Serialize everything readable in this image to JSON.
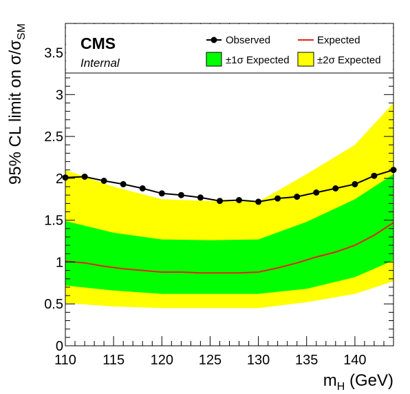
{
  "chart_data": {
    "type": "line",
    "experiment_label": "CMS",
    "status_label": "Internal",
    "xlabel": "m",
    "xlabel_sub": "H",
    "xlabel_units": " (GeV)",
    "ylabel_main": "95% CL limit on σ/σ",
    "ylabel_sub": "SM",
    "xlim": [
      110,
      144
    ],
    "ylim": [
      0,
      3.85
    ],
    "x_ticks": [
      110,
      115,
      120,
      125,
      130,
      135,
      140
    ],
    "x_tick_labels": [
      "110",
      "115",
      "120",
      "125",
      "130",
      "135",
      "140"
    ],
    "y_ticks": [
      0,
      0.5,
      1,
      1.5,
      2,
      2.5,
      3,
      3.5
    ],
    "y_tick_labels": [
      "0",
      "0.5",
      "1",
      "1.5",
      "2",
      "2.5",
      "3",
      "3.5"
    ],
    "legend": {
      "observed": "Observed",
      "expected": "Expected",
      "band1": "±1σ Expected",
      "band2": "±2σ Expected"
    },
    "colors": {
      "observed": "#000000",
      "expected": "#e8201a",
      "band1": "#00ff00",
      "band2": "#ffff00"
    },
    "grid": false,
    "observed": {
      "x": [
        110,
        112,
        114,
        116,
        118,
        120,
        122,
        124,
        126,
        128,
        130,
        132,
        134,
        136,
        138,
        140,
        142,
        144
      ],
      "y": [
        2.01,
        2.02,
        1.97,
        1.93,
        1.88,
        1.82,
        1.8,
        1.77,
        1.73,
        1.74,
        1.72,
        1.76,
        1.78,
        1.83,
        1.88,
        1.93,
        2.03,
        2.1
      ]
    },
    "expected": {
      "x": [
        110,
        112,
        114,
        116,
        118,
        120,
        122,
        124,
        126,
        128,
        130,
        132,
        134,
        136,
        138,
        140,
        142,
        144
      ],
      "y": [
        1.01,
        0.99,
        0.95,
        0.92,
        0.9,
        0.88,
        0.88,
        0.87,
        0.87,
        0.87,
        0.88,
        0.93,
        0.99,
        1.06,
        1.12,
        1.2,
        1.32,
        1.47
      ]
    },
    "band_1sigma": {
      "x": [
        110,
        115,
        120,
        125,
        130,
        135,
        140,
        144
      ],
      "low": [
        0.72,
        0.66,
        0.62,
        0.62,
        0.62,
        0.68,
        0.82,
        1.02
      ],
      "high": [
        1.49,
        1.35,
        1.27,
        1.26,
        1.27,
        1.48,
        1.75,
        2.05
      ]
    },
    "band_2sigma": {
      "x": [
        110,
        115,
        120,
        125,
        130,
        135,
        140,
        144
      ],
      "low": [
        0.51,
        0.47,
        0.45,
        0.45,
        0.45,
        0.52,
        0.62,
        0.77
      ],
      "high": [
        2.1,
        1.9,
        1.75,
        1.73,
        1.72,
        2.05,
        2.4,
        2.9
      ]
    }
  }
}
